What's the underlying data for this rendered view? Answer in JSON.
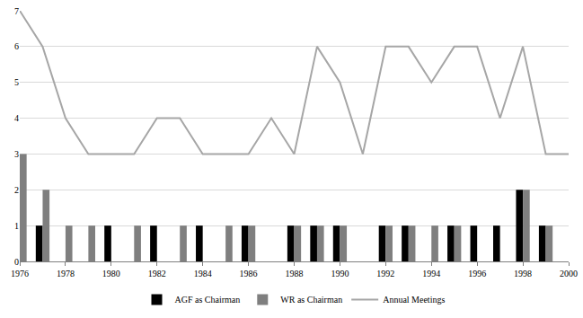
{
  "chart_data": {
    "type": "bar",
    "x": [
      1976,
      1977,
      1978,
      1979,
      1980,
      1981,
      1982,
      1983,
      1984,
      1985,
      1986,
      1987,
      1988,
      1989,
      1990,
      1991,
      1992,
      1993,
      1994,
      1995,
      1996,
      1997,
      1998,
      1999,
      2000
    ],
    "series": [
      {
        "name": "AGF as Chairman",
        "type": "bar",
        "color": "#000000",
        "values": [
          0,
          1,
          0,
          0,
          1,
          0,
          1,
          0,
          1,
          0,
          1,
          0,
          1,
          1,
          1,
          0,
          1,
          1,
          0,
          1,
          1,
          1,
          2,
          1,
          0
        ]
      },
      {
        "name": "WR as Chairman",
        "type": "bar",
        "color": "#7f7f7f",
        "values": [
          3,
          2,
          1,
          1,
          0,
          1,
          0,
          1,
          0,
          1,
          1,
          0,
          1,
          1,
          1,
          0,
          1,
          1,
          1,
          1,
          0,
          0,
          2,
          1,
          0
        ]
      },
      {
        "name": "Annual Meetings",
        "type": "line",
        "color": "#a6a6a6",
        "values": [
          7,
          6,
          4,
          3,
          3,
          3,
          4,
          4,
          3,
          3,
          3,
          4,
          3,
          6,
          5,
          3,
          6,
          6,
          5,
          6,
          6,
          4,
          6,
          3,
          3
        ]
      }
    ],
    "xlim": [
      1976,
      2000
    ],
    "xticks": [
      1976,
      1978,
      1980,
      1982,
      1984,
      1986,
      1988,
      1990,
      1992,
      1994,
      1996,
      1998,
      2000
    ],
    "ylim": [
      0,
      7
    ],
    "yticks": [
      0,
      1,
      2,
      3,
      4,
      5,
      6,
      7
    ],
    "grid": true,
    "legend": "bottom"
  }
}
